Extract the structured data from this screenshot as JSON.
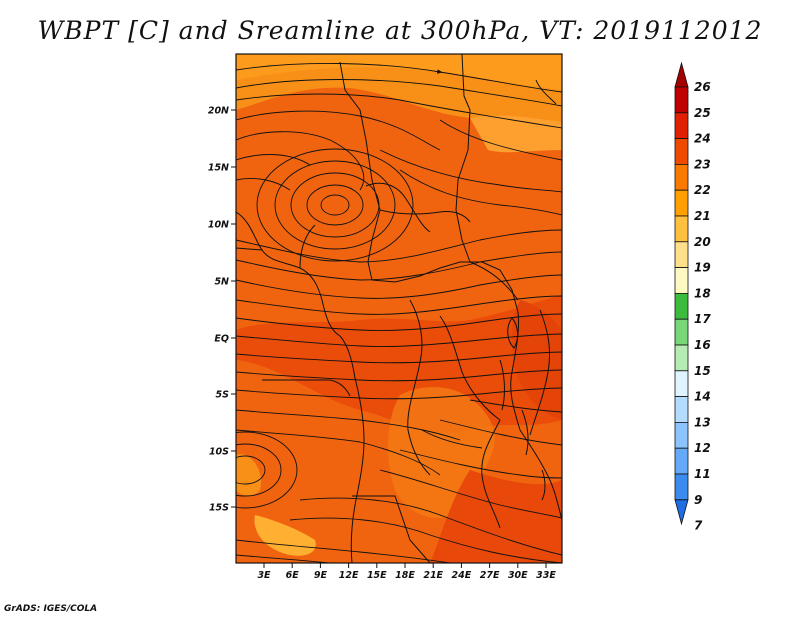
{
  "title": "WBPT [C] and Sreamline at 300hPa, VT: 2019112012",
  "credit": "GrADS: IGES/COLA",
  "map": {
    "lat_ticks": [
      "20N",
      "15N",
      "10N",
      "5N",
      "EQ",
      "5S",
      "10S",
      "15S"
    ],
    "lon_ticks": [
      "3E",
      "6E",
      "9E",
      "12E",
      "15E",
      "18E",
      "21E",
      "24E",
      "27E",
      "30E",
      "33E"
    ],
    "lon_range": [
      0,
      35
    ],
    "lat_range": [
      -19.5,
      24.5
    ]
  },
  "colorbar": {
    "labels": [
      "26",
      "25",
      "24",
      "23",
      "22",
      "21",
      "20",
      "19",
      "18",
      "17",
      "16",
      "15",
      "14",
      "13",
      "12",
      "11",
      "9",
      "7"
    ],
    "colors": [
      "#a50000",
      "#c00000",
      "#e02000",
      "#f04a00",
      "#f87a00",
      "#ffa000",
      "#ffc040",
      "#ffe08a",
      "#fff8c0",
      "#3cbc3c",
      "#78d878",
      "#b4ecb4",
      "#e0f4ff",
      "#b4dcff",
      "#8cc4ff",
      "#64aaf8",
      "#3c8cf0",
      "#1e6ee6"
    ]
  },
  "field": {
    "base_color": "#f06410",
    "darker_color": "#ea4c0a",
    "warm_color": "#f89018",
    "light_color": "#ffb030"
  }
}
